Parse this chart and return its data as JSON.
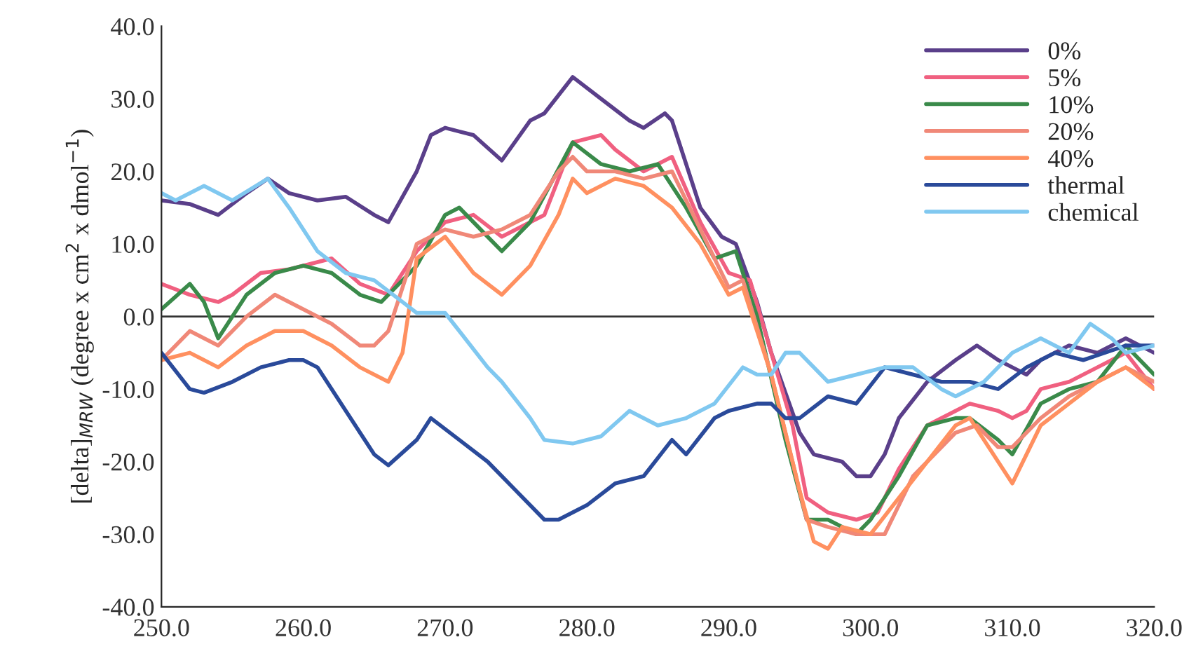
{
  "chart_data": {
    "type": "line",
    "ylabel": "[delta]$_{MRW}$ (degree x cm$^{2}$ x dmol$^{−1}$)",
    "xlim": [
      250,
      320
    ],
    "ylim": [
      -40,
      40
    ],
    "xticks": [
      {
        "value": 250,
        "label": "250.0"
      },
      {
        "value": 260,
        "label": "260.0"
      },
      {
        "value": 270,
        "label": "270.0"
      },
      {
        "value": 280,
        "label": "280.0"
      },
      {
        "value": 290,
        "label": "290.0"
      },
      {
        "value": 300,
        "label": "300.0"
      },
      {
        "value": 310,
        "label": "310.0"
      },
      {
        "value": 320,
        "label": "320.0"
      }
    ],
    "yticks": [
      {
        "value": -40,
        "label": "-40.0"
      },
      {
        "value": -30,
        "label": "-30.0"
      },
      {
        "value": -20,
        "label": "-20.0"
      },
      {
        "value": -10,
        "label": "-10.0"
      },
      {
        "value": 0,
        "label": "0.0"
      },
      {
        "value": 10,
        "label": "10.0"
      },
      {
        "value": 20,
        "label": "20.0"
      },
      {
        "value": 30,
        "label": "30.0"
      },
      {
        "value": 40,
        "label": "40.0"
      }
    ],
    "ref_lines": [
      {
        "axis": "y",
        "value": 0,
        "color": "#333333"
      }
    ],
    "grid": false,
    "legend": "top right",
    "marker": "none",
    "line_style": "solid",
    "series": [
      {
        "name": "0%",
        "color": "#5a3f8a",
        "x": [
          250,
          252,
          254,
          256,
          257.5,
          259,
          261,
          263,
          265,
          266,
          268,
          269,
          270,
          271,
          272,
          274,
          276,
          277,
          279,
          281,
          283,
          284,
          285.5,
          286,
          288,
          289.5,
          290.5,
          292,
          293,
          295,
          296,
          298,
          299,
          300,
          301,
          302,
          304,
          306,
          307.5,
          309,
          310,
          311,
          312,
          314,
          316,
          318,
          320
        ],
        "values": [
          16,
          15.5,
          14,
          17,
          19,
          17,
          16,
          16.5,
          14,
          13,
          20,
          25,
          26,
          25.5,
          25,
          21.5,
          27,
          28,
          33,
          30,
          27,
          26,
          28,
          27,
          15,
          11,
          10,
          2,
          -5,
          -16,
          -19,
          -20,
          -22,
          -22,
          -19,
          -14,
          -9,
          -6,
          -4,
          -6,
          -7,
          -8,
          -6,
          -4,
          -5,
          -3,
          -5
        ]
      },
      {
        "name": "5%",
        "color": "#f06080",
        "x": [
          250,
          252,
          254,
          255,
          257,
          259,
          261,
          262,
          264,
          266,
          268,
          270,
          272,
          274,
          276,
          277,
          279,
          281,
          282,
          284,
          286,
          288,
          290,
          291.5,
          293,
          294.5,
          295.5,
          297,
          299,
          300.5,
          302,
          304,
          306,
          307,
          309,
          310,
          311,
          312,
          314,
          316,
          318,
          320
        ],
        "values": [
          4.5,
          3,
          2,
          3,
          6,
          6.5,
          7.5,
          8,
          4.5,
          3,
          9,
          13,
          14,
          11,
          13,
          14,
          24,
          25,
          23,
          20,
          22,
          13,
          6,
          5,
          -5,
          -15,
          -25,
          -27,
          -28,
          -27,
          -21,
          -15,
          -13,
          -12,
          -13,
          -14,
          -13,
          -10,
          -9,
          -7,
          -5,
          -10
        ]
      },
      {
        "name": "10%",
        "color": "#3a8a4a",
        "x": [
          250,
          252,
          253,
          254,
          256,
          258,
          260,
          262,
          264,
          265.5,
          268,
          270,
          271,
          273,
          274,
          276,
          279,
          281,
          283,
          285,
          287,
          289,
          290.5,
          292,
          294,
          295.5,
          297,
          299,
          300,
          302,
          304,
          306,
          307,
          309,
          310,
          312,
          314,
          316,
          318,
          320
        ],
        "values": [
          1,
          4.5,
          2,
          -3,
          3,
          6,
          7,
          6,
          3,
          2,
          7,
          14,
          15,
          11,
          9,
          13,
          24,
          21,
          20,
          21,
          15,
          8,
          9,
          0,
          -17,
          -28,
          -28,
          -30,
          -28,
          -22,
          -15,
          -14,
          -14,
          -17,
          -19,
          -12,
          -10,
          -9,
          -4,
          -8
        ]
      },
      {
        "name": "20%",
        "color": "#f08878",
        "x": [
          250,
          252,
          254,
          256,
          258,
          260,
          262,
          264,
          265,
          266,
          268,
          270,
          272,
          274,
          276,
          278,
          279,
          280,
          282,
          284,
          286,
          288,
          290,
          291,
          293,
          294.5,
          295.5,
          297,
          299,
          301,
          303,
          305,
          306,
          307.5,
          309,
          310,
          312,
          314,
          316,
          318,
          320
        ],
        "values": [
          -6,
          -2,
          -4,
          0,
          3,
          1,
          -1,
          -4,
          -4,
          -2,
          10,
          12,
          11,
          12,
          14,
          20,
          22,
          20,
          20,
          19,
          20,
          12,
          4,
          5,
          -8,
          -20,
          -28,
          -29,
          -30,
          -30,
          -22,
          -18,
          -16,
          -15,
          -18,
          -18,
          -14,
          -11,
          -9,
          -7,
          -9
        ]
      },
      {
        "name": "40%",
        "color": "#ff9060",
        "x": [
          250,
          252,
          254,
          256,
          258,
          260,
          262,
          264,
          266,
          267,
          268,
          270,
          272,
          274,
          276,
          278,
          279,
          280,
          282,
          284,
          286,
          288,
          290,
          291,
          293,
          295,
          296,
          297,
          298,
          300,
          302,
          304,
          306,
          307,
          309,
          310,
          312,
          314,
          316,
          318,
          320
        ],
        "values": [
          -6,
          -5,
          -7,
          -4,
          -2,
          -2,
          -4,
          -7,
          -9,
          -5,
          8,
          11,
          6,
          3,
          7,
          14,
          19,
          17,
          19,
          18,
          15,
          10,
          3,
          4,
          -8,
          -24,
          -31,
          -32,
          -29,
          -30,
          -25,
          -20,
          -15,
          -14,
          -20,
          -23,
          -15,
          -12,
          -9,
          -7,
          -10
        ]
      },
      {
        "name": "thermal",
        "color": "#2a4a9a",
        "x": [
          250,
          252,
          253,
          255,
          257,
          259,
          260,
          261,
          263,
          265,
          266,
          268,
          269,
          271,
          273,
          275,
          277,
          278,
          280,
          282,
          284,
          286,
          287,
          289,
          290,
          292,
          293,
          294,
          295,
          297,
          299,
          301,
          303,
          305,
          307,
          309,
          311,
          313,
          315,
          318,
          320
        ],
        "values": [
          -5,
          -10,
          -10.5,
          -9,
          -7,
          -6,
          -6,
          -7,
          -13,
          -19,
          -20.5,
          -17,
          -14,
          -17,
          -20,
          -24,
          -28,
          -28,
          -26,
          -23,
          -22,
          -17,
          -19,
          -14,
          -13,
          -12,
          -12,
          -14,
          -14,
          -11,
          -12,
          -7,
          -8,
          -9,
          -9,
          -10,
          -7,
          -5,
          -6,
          -4,
          -4
        ]
      },
      {
        "name": "chemical",
        "color": "#80c8f0",
        "x": [
          250,
          251,
          253,
          255,
          257.5,
          259,
          261,
          263,
          265,
          267,
          268,
          270,
          271,
          273,
          274,
          276,
          277,
          279,
          281,
          283,
          285,
          287,
          289,
          291,
          292,
          293,
          294,
          295,
          297,
          299,
          301,
          303,
          305,
          306,
          308,
          310,
          312,
          314,
          315.5,
          317,
          318,
          320
        ],
        "values": [
          17,
          16,
          18,
          16,
          19,
          15,
          9,
          6,
          5,
          2,
          0.5,
          0.5,
          -2,
          -7,
          -9,
          -14,
          -17,
          -17.5,
          -16.5,
          -13,
          -15,
          -14,
          -12,
          -7,
          -8,
          -8,
          -5,
          -5,
          -9,
          -8,
          -7,
          -7,
          -10,
          -11,
          -9,
          -5,
          -3,
          -5,
          -1,
          -3,
          -5,
          -4
        ]
      }
    ]
  }
}
